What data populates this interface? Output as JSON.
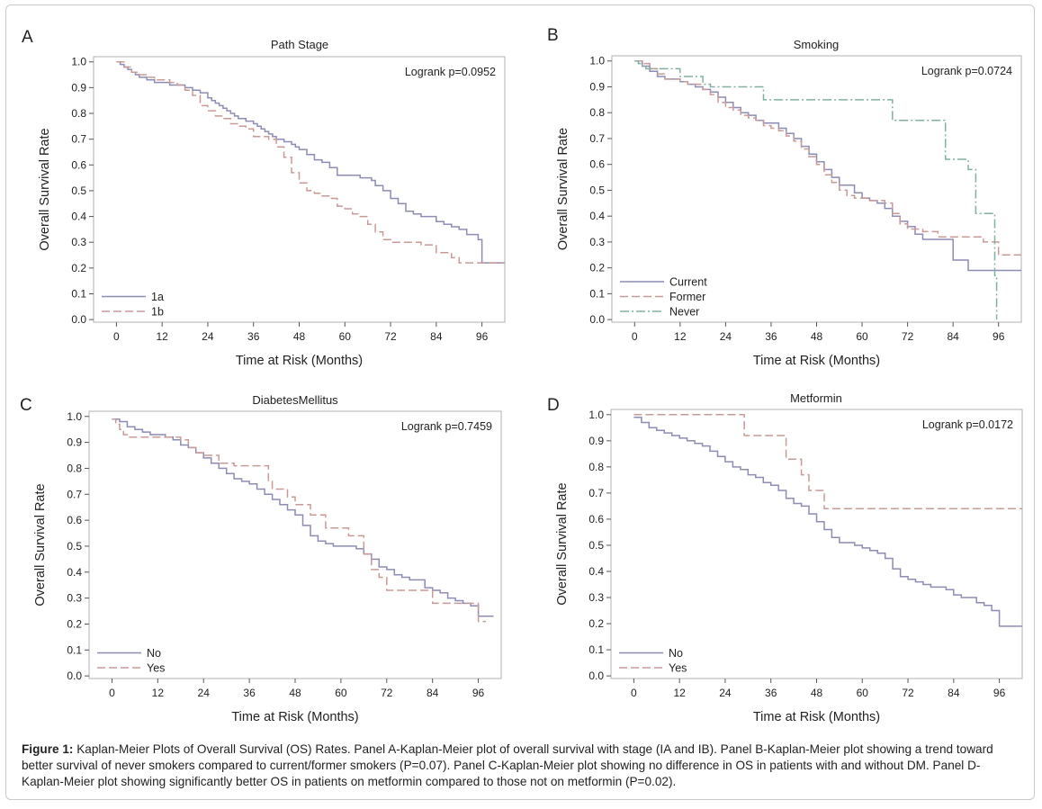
{
  "caption": {
    "label": "Figure 1:",
    "text": "Kaplan-Meier Plots of Overall Survival (OS) Rates. Panel A-Kaplan-Meier plot of overall survival with stage (IA and IB). Panel B-Kaplan-Meier plot showing a trend toward better survival of never smokers compared to current/former smokers (P=0.07). Panel C-Kaplan-Meier plot showing no difference in OS in patients with and without DM. Panel D-Kaplan-Meier plot showing significantly better OS in patients on metformin compared to those not on metformin (P=0.02)."
  },
  "colors": {
    "series1": "#8c8cb4",
    "series2": "#c89a96",
    "series3": "#82b0a0",
    "axis": "#555555",
    "frame": "#b0b0b0"
  },
  "chart_data": [
    {
      "type": "line",
      "panel_letter": "A",
      "title": "Path Stage",
      "xlabel": "Time at Risk (Months)",
      "ylabel": "Overall Survival Rate",
      "xlim": [
        -6,
        102
      ],
      "ylim": [
        -0.01,
        1.02
      ],
      "xticks": [
        0,
        12,
        24,
        36,
        48,
        60,
        72,
        84,
        96
      ],
      "yticks": [
        "0.0",
        "0.1",
        "0.2",
        "0.3",
        "0.4",
        "0.5",
        "0.6",
        "0.7",
        "0.8",
        "0.9",
        "1.0"
      ],
      "annotation": "Logrank p=0.0952",
      "legend_position": "bottom-left",
      "series": [
        {
          "name": "1a",
          "style": "solid",
          "x": [
            0,
            1,
            2,
            3,
            4,
            5,
            6,
            8,
            10,
            12,
            14,
            16,
            18,
            20,
            22,
            24,
            25,
            26,
            27,
            28,
            29,
            30,
            31,
            32,
            33,
            34,
            35,
            36,
            37,
            38,
            39,
            40,
            41,
            42,
            43,
            44,
            45,
            46,
            47,
            48,
            50,
            52,
            54,
            56,
            58,
            60,
            62,
            64,
            66,
            67,
            68,
            70,
            72,
            74,
            76,
            78,
            80,
            82,
            84,
            86,
            88,
            90,
            92,
            95,
            96,
            99,
            102
          ],
          "y": [
            1.0,
            0.99,
            0.98,
            0.97,
            0.96,
            0.95,
            0.94,
            0.93,
            0.92,
            0.92,
            0.91,
            0.91,
            0.9,
            0.89,
            0.88,
            0.86,
            0.85,
            0.84,
            0.83,
            0.82,
            0.81,
            0.8,
            0.79,
            0.78,
            0.78,
            0.77,
            0.77,
            0.76,
            0.75,
            0.74,
            0.73,
            0.72,
            0.71,
            0.7,
            0.7,
            0.69,
            0.69,
            0.68,
            0.67,
            0.66,
            0.64,
            0.62,
            0.61,
            0.59,
            0.56,
            0.56,
            0.56,
            0.55,
            0.55,
            0.54,
            0.52,
            0.5,
            0.47,
            0.45,
            0.42,
            0.41,
            0.4,
            0.4,
            0.38,
            0.37,
            0.36,
            0.35,
            0.33,
            0.31,
            0.22,
            0.22,
            0.22
          ]
        },
        {
          "name": "1b",
          "style": "dash",
          "x": [
            0,
            2,
            4,
            6,
            8,
            10,
            12,
            14,
            16,
            18,
            20,
            22,
            24,
            26,
            28,
            30,
            32,
            34,
            36,
            38,
            40,
            42,
            44,
            46,
            48,
            50,
            52,
            54,
            56,
            58,
            60,
            62,
            64,
            66,
            68,
            70,
            72,
            76,
            80,
            84,
            88,
            90,
            96,
            102
          ],
          "y": [
            1.0,
            0.98,
            0.96,
            0.95,
            0.94,
            0.93,
            0.93,
            0.92,
            0.91,
            0.89,
            0.87,
            0.83,
            0.81,
            0.79,
            0.78,
            0.76,
            0.75,
            0.74,
            0.71,
            0.71,
            0.7,
            0.67,
            0.63,
            0.57,
            0.53,
            0.5,
            0.49,
            0.48,
            0.47,
            0.44,
            0.43,
            0.41,
            0.4,
            0.37,
            0.34,
            0.31,
            0.3,
            0.3,
            0.29,
            0.26,
            0.24,
            0.22,
            0.22,
            0.22
          ]
        }
      ]
    },
    {
      "type": "line",
      "panel_letter": "B",
      "title": "Smoking",
      "xlabel": "Time at Risk (Months)",
      "ylabel": "Overall Survival Rate",
      "xlim": [
        -6,
        102
      ],
      "ylim": [
        -0.01,
        1.02
      ],
      "xticks": [
        0,
        12,
        24,
        36,
        48,
        60,
        72,
        84,
        96
      ],
      "yticks": [
        "0.0",
        "0.1",
        "0.2",
        "0.3",
        "0.4",
        "0.5",
        "0.6",
        "0.7",
        "0.8",
        "0.9",
        "1.0"
      ],
      "annotation": "Logrank p=0.0724",
      "legend_position": "bottom-left",
      "series": [
        {
          "name": "Current",
          "style": "solid",
          "x": [
            0,
            2,
            4,
            6,
            8,
            10,
            12,
            14,
            16,
            18,
            20,
            22,
            24,
            26,
            28,
            30,
            32,
            34,
            36,
            38,
            40,
            42,
            44,
            46,
            48,
            50,
            52,
            54,
            56,
            58,
            60,
            62,
            64,
            66,
            68,
            70,
            72,
            74,
            76,
            80,
            84,
            88,
            96,
            102
          ],
          "y": [
            1.0,
            0.98,
            0.96,
            0.94,
            0.93,
            0.93,
            0.92,
            0.91,
            0.9,
            0.89,
            0.88,
            0.86,
            0.84,
            0.82,
            0.8,
            0.79,
            0.77,
            0.76,
            0.76,
            0.74,
            0.72,
            0.7,
            0.67,
            0.64,
            0.61,
            0.58,
            0.55,
            0.52,
            0.52,
            0.49,
            0.47,
            0.46,
            0.45,
            0.43,
            0.4,
            0.38,
            0.36,
            0.33,
            0.31,
            0.31,
            0.23,
            0.19,
            0.19,
            0.19
          ]
        },
        {
          "name": "Former",
          "style": "dash",
          "x": [
            0,
            2,
            4,
            6,
            8,
            10,
            12,
            14,
            16,
            18,
            20,
            22,
            24,
            26,
            28,
            30,
            32,
            34,
            36,
            38,
            40,
            42,
            44,
            46,
            48,
            50,
            52,
            54,
            56,
            58,
            60,
            62,
            64,
            66,
            68,
            70,
            72,
            76,
            80,
            84,
            88,
            92,
            96,
            102
          ],
          "y": [
            1.0,
            0.99,
            0.97,
            0.95,
            0.93,
            0.93,
            0.92,
            0.91,
            0.91,
            0.89,
            0.87,
            0.84,
            0.82,
            0.81,
            0.79,
            0.78,
            0.77,
            0.75,
            0.74,
            0.73,
            0.71,
            0.69,
            0.66,
            0.63,
            0.6,
            0.56,
            0.53,
            0.5,
            0.48,
            0.47,
            0.47,
            0.46,
            0.46,
            0.45,
            0.41,
            0.37,
            0.35,
            0.34,
            0.32,
            0.32,
            0.32,
            0.3,
            0.25,
            0.25
          ]
        },
        {
          "name": "Never",
          "style": "dashdot",
          "x": [
            0,
            1,
            2,
            3,
            10,
            12,
            16,
            18,
            20,
            24,
            30,
            34,
            66,
            68,
            80,
            82,
            86,
            88,
            90,
            92,
            94,
            95,
            95.5
          ],
          "y": [
            1.0,
            0.99,
            0.98,
            0.97,
            0.97,
            0.94,
            0.94,
            0.91,
            0.9,
            0.9,
            0.9,
            0.85,
            0.85,
            0.77,
            0.77,
            0.62,
            0.62,
            0.58,
            0.41,
            0.41,
            0.41,
            0.17,
            0.0
          ]
        }
      ]
    },
    {
      "type": "line",
      "panel_letter": "C",
      "title": "DiabetesMellitus",
      "xlabel": "Time at Risk (Months)",
      "ylabel": "Overall Survival Rate",
      "xlim": [
        -6,
        102
      ],
      "ylim": [
        -0.01,
        1.02
      ],
      "xticks": [
        0,
        12,
        24,
        36,
        48,
        60,
        72,
        84,
        96
      ],
      "yticks": [
        "0.0",
        "0.1",
        "0.2",
        "0.3",
        "0.4",
        "0.5",
        "0.6",
        "0.7",
        "0.8",
        "0.9",
        "1.0"
      ],
      "annotation": "Logrank p=0.7459",
      "legend_position": "bottom-left",
      "series": [
        {
          "name": "No",
          "style": "solid",
          "x": [
            0,
            2,
            4,
            6,
            8,
            10,
            12,
            14,
            16,
            18,
            20,
            22,
            24,
            26,
            28,
            30,
            32,
            34,
            36,
            38,
            40,
            42,
            44,
            46,
            48,
            50,
            52,
            54,
            56,
            58,
            60,
            62,
            64,
            66,
            68,
            70,
            72,
            74,
            76,
            78,
            80,
            82,
            84,
            86,
            88,
            90,
            92,
            94,
            96,
            100
          ],
          "y": [
            0.99,
            0.98,
            0.96,
            0.95,
            0.94,
            0.93,
            0.93,
            0.92,
            0.91,
            0.89,
            0.88,
            0.86,
            0.84,
            0.82,
            0.8,
            0.78,
            0.76,
            0.75,
            0.74,
            0.72,
            0.7,
            0.68,
            0.66,
            0.64,
            0.62,
            0.58,
            0.54,
            0.52,
            0.51,
            0.5,
            0.5,
            0.5,
            0.49,
            0.47,
            0.45,
            0.42,
            0.41,
            0.39,
            0.38,
            0.37,
            0.37,
            0.34,
            0.33,
            0.32,
            0.3,
            0.29,
            0.28,
            0.27,
            0.23,
            0.23
          ]
        },
        {
          "name": "Yes",
          "style": "dash",
          "x": [
            0,
            1,
            2,
            3,
            4,
            10,
            12,
            14,
            18,
            20,
            22,
            24,
            28,
            32,
            40,
            41,
            42,
            44,
            46,
            48,
            50,
            52,
            56,
            60,
            62,
            64,
            66,
            68,
            70,
            72,
            74,
            76,
            80,
            84,
            88,
            92,
            96,
            98
          ],
          "y": [
            0.99,
            0.97,
            0.95,
            0.93,
            0.92,
            0.92,
            0.92,
            0.92,
            0.91,
            0.88,
            0.86,
            0.85,
            0.82,
            0.81,
            0.81,
            0.75,
            0.72,
            0.72,
            0.69,
            0.66,
            0.66,
            0.62,
            0.57,
            0.57,
            0.54,
            0.54,
            0.47,
            0.41,
            0.38,
            0.33,
            0.33,
            0.33,
            0.33,
            0.28,
            0.28,
            0.28,
            0.21,
            0.21
          ]
        }
      ]
    },
    {
      "type": "line",
      "panel_letter": "D",
      "title": "Metformin",
      "xlabel": "Time at Risk (Months)",
      "ylabel": "Overall Survival Rate",
      "xlim": [
        -6,
        102
      ],
      "ylim": [
        -0.01,
        1.02
      ],
      "xticks": [
        0,
        12,
        24,
        36,
        48,
        60,
        72,
        84,
        96
      ],
      "yticks": [
        "0.0",
        "0.1",
        "0.2",
        "0.3",
        "0.4",
        "0.5",
        "0.6",
        "0.7",
        "0.8",
        "0.9",
        "1.0"
      ],
      "annotation": "Logrank p=0.0172",
      "legend_position": "bottom-left",
      "series": [
        {
          "name": "No",
          "style": "solid",
          "x": [
            0,
            2,
            4,
            6,
            8,
            10,
            12,
            14,
            16,
            18,
            20,
            22,
            24,
            26,
            28,
            30,
            32,
            34,
            36,
            38,
            40,
            42,
            44,
            46,
            48,
            50,
            52,
            54,
            56,
            58,
            60,
            62,
            64,
            66,
            68,
            70,
            72,
            74,
            76,
            78,
            80,
            82,
            84,
            86,
            88,
            90,
            92,
            94,
            96,
            102
          ],
          "y": [
            0.99,
            0.97,
            0.95,
            0.94,
            0.93,
            0.92,
            0.91,
            0.9,
            0.89,
            0.88,
            0.86,
            0.84,
            0.82,
            0.8,
            0.79,
            0.77,
            0.76,
            0.74,
            0.73,
            0.71,
            0.68,
            0.66,
            0.65,
            0.62,
            0.59,
            0.56,
            0.53,
            0.51,
            0.51,
            0.5,
            0.49,
            0.48,
            0.47,
            0.45,
            0.41,
            0.38,
            0.37,
            0.36,
            0.35,
            0.34,
            0.34,
            0.33,
            0.31,
            0.3,
            0.3,
            0.28,
            0.27,
            0.25,
            0.19,
            0.19
          ]
        },
        {
          "name": "Yes",
          "style": "dash",
          "x": [
            0,
            27,
            29,
            36,
            40,
            42,
            44,
            46,
            48,
            50,
            102
          ],
          "y": [
            1.0,
            1.0,
            0.92,
            0.92,
            0.83,
            0.83,
            0.77,
            0.71,
            0.71,
            0.64,
            0.64
          ]
        }
      ]
    }
  ]
}
